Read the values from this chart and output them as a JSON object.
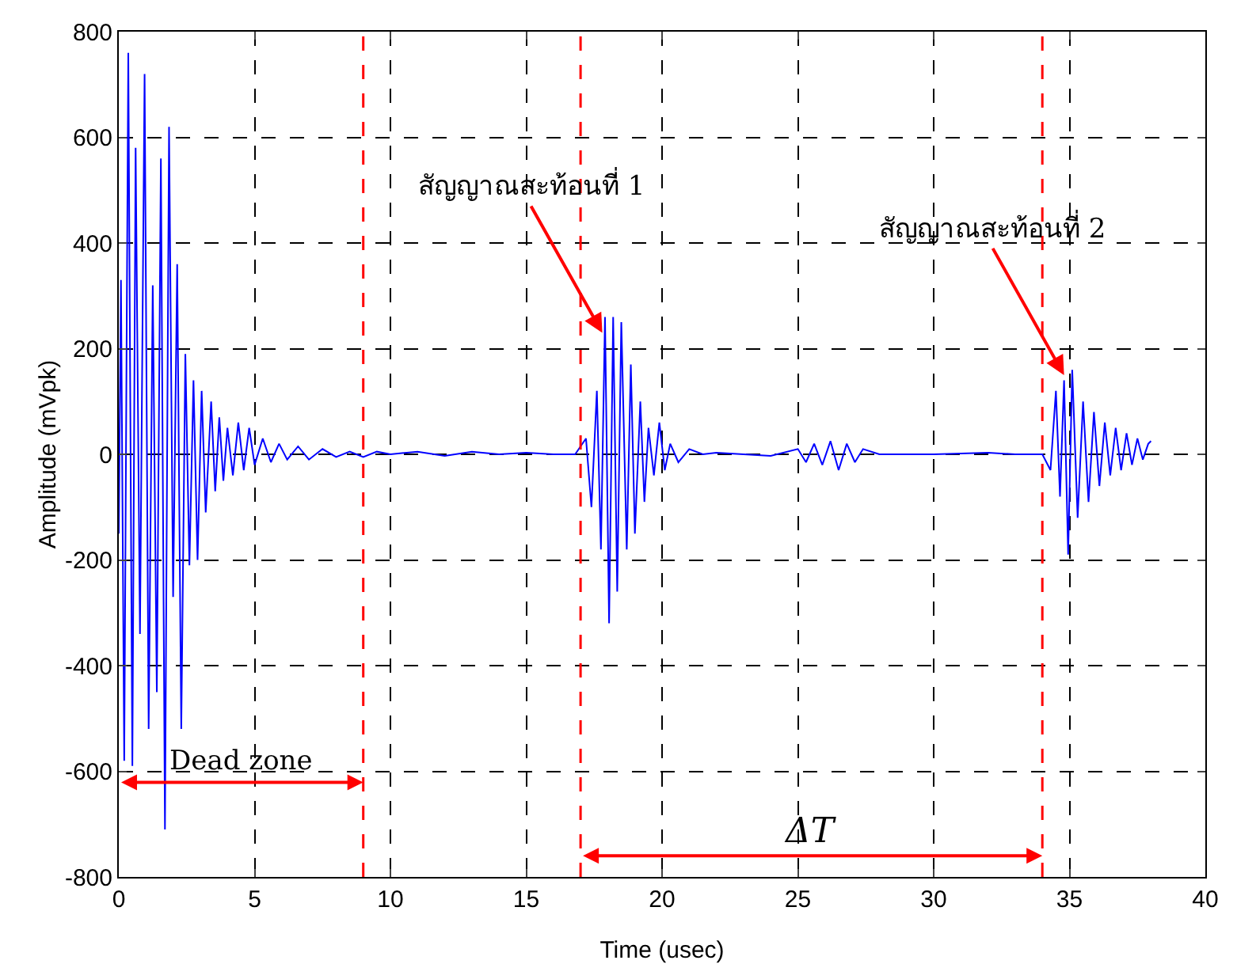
{
  "chart_data": {
    "type": "line",
    "xlabel": "Time (usec)",
    "ylabel": "Amplitude (mVpk)",
    "xlim": [
      0,
      40
    ],
    "xticks": [
      0,
      5,
      10,
      15,
      20,
      25,
      30,
      35,
      40
    ],
    "ylim": [
      -800,
      800
    ],
    "yticks": [
      -800,
      -600,
      -400,
      -200,
      0,
      200,
      400,
      600,
      800
    ],
    "grid": true,
    "marker": "none",
    "line_style": "solid",
    "series": [
      {
        "color": "#0000ff",
        "x": [
          0,
          0.08,
          0.2,
          0.35,
          0.5,
          0.62,
          0.78,
          0.95,
          1.1,
          1.25,
          1.4,
          1.55,
          1.7,
          1.85,
          2.0,
          2.15,
          2.3,
          2.45,
          2.6,
          2.75,
          2.9,
          3.05,
          3.2,
          3.4,
          3.55,
          3.7,
          3.85,
          4.0,
          4.2,
          4.4,
          4.6,
          4.8,
          5.0,
          5.3,
          5.6,
          5.9,
          6.2,
          6.6,
          7.0,
          7.5,
          8.0,
          8.5,
          9.0,
          9.5,
          10,
          11,
          12,
          13,
          14,
          15,
          16,
          16.8,
          17.2,
          17.4,
          17.6,
          17.75,
          17.9,
          18.05,
          18.2,
          18.35,
          18.5,
          18.7,
          18.85,
          19.0,
          19.2,
          19.35,
          19.5,
          19.7,
          19.9,
          20.1,
          20.3,
          20.6,
          21,
          21.5,
          22,
          23,
          24,
          25,
          25.3,
          25.6,
          25.9,
          26.2,
          26.5,
          26.8,
          27.1,
          27.4,
          28,
          30,
          32,
          33,
          34,
          34.3,
          34.5,
          34.65,
          34.8,
          34.95,
          35.1,
          35.3,
          35.5,
          35.7,
          35.9,
          36.1,
          36.3,
          36.5,
          36.7,
          36.9,
          37.1,
          37.3,
          37.5,
          37.7,
          37.9,
          38.0
        ],
        "values": [
          -150,
          330,
          -580,
          760,
          -590,
          580,
          -340,
          720,
          -520,
          320,
          -450,
          560,
          -710,
          620,
          -270,
          360,
          -520,
          190,
          -210,
          140,
          -200,
          120,
          -110,
          100,
          -70,
          70,
          -50,
          50,
          -40,
          60,
          -30,
          50,
          -20,
          30,
          -15,
          20,
          -10,
          15,
          -10,
          10,
          -5,
          5,
          -5,
          5,
          0,
          5,
          -3,
          5,
          0,
          3,
          0,
          0,
          30,
          -100,
          120,
          -180,
          260,
          -320,
          260,
          -260,
          250,
          -180,
          170,
          -150,
          100,
          -90,
          50,
          -40,
          60,
          -30,
          20,
          -15,
          10,
          0,
          3,
          0,
          -3,
          10,
          -15,
          20,
          -20,
          25,
          -30,
          20,
          -15,
          10,
          0,
          0,
          3,
          0,
          0,
          -30,
          120,
          -80,
          140,
          -190,
          160,
          -120,
          100,
          -90,
          80,
          -60,
          60,
          -40,
          50,
          -30,
          40,
          -20,
          30,
          -10,
          20,
          25
        ]
      }
    ],
    "ref_lines": [
      {
        "axis": "x",
        "value": 9,
        "color": "#ff0000",
        "line_style": "dashed"
      },
      {
        "axis": "x",
        "value": 17,
        "color": "#ff0000",
        "line_style": "dashed"
      },
      {
        "axis": "x",
        "value": 34,
        "color": "#ff0000",
        "line_style": "dashed"
      }
    ],
    "annotations": [
      {
        "text": "สัญญาณสะท้อนที่ 1",
        "x": 17.8,
        "y": 230
      },
      {
        "text": "สัญญาณสะท้อนที่ 2",
        "x": 34.8,
        "y": 150
      },
      "Dead zone",
      "ΔT"
    ]
  }
}
